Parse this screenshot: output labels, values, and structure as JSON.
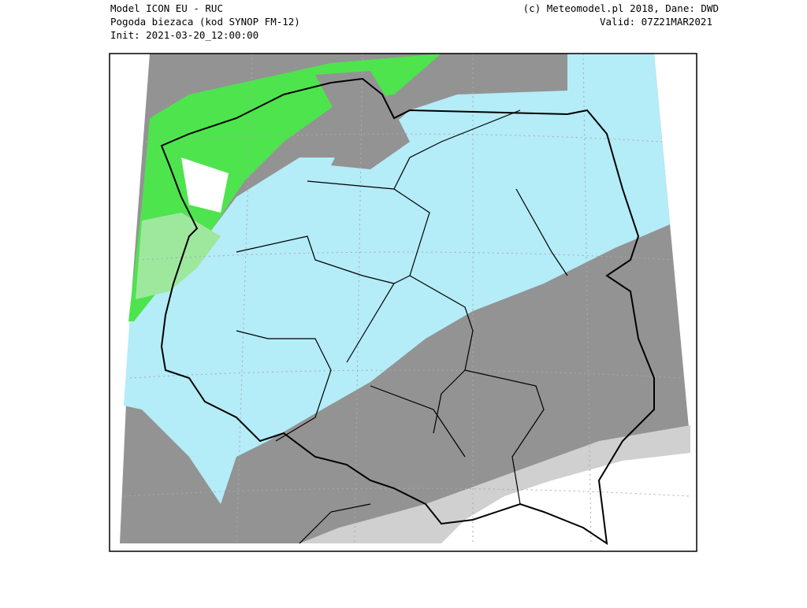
{
  "header": {
    "left": [
      "Model ICON EU - RUC",
      "Pogoda biezaca (kod SYNOP FM-12)",
      "Init: 2021-03-20_12:00:00"
    ],
    "right": [
      "(c) Meteomodel.pl 2018, Dane: DWD",
      "Valid: 07Z21MAR2021"
    ]
  }
}
